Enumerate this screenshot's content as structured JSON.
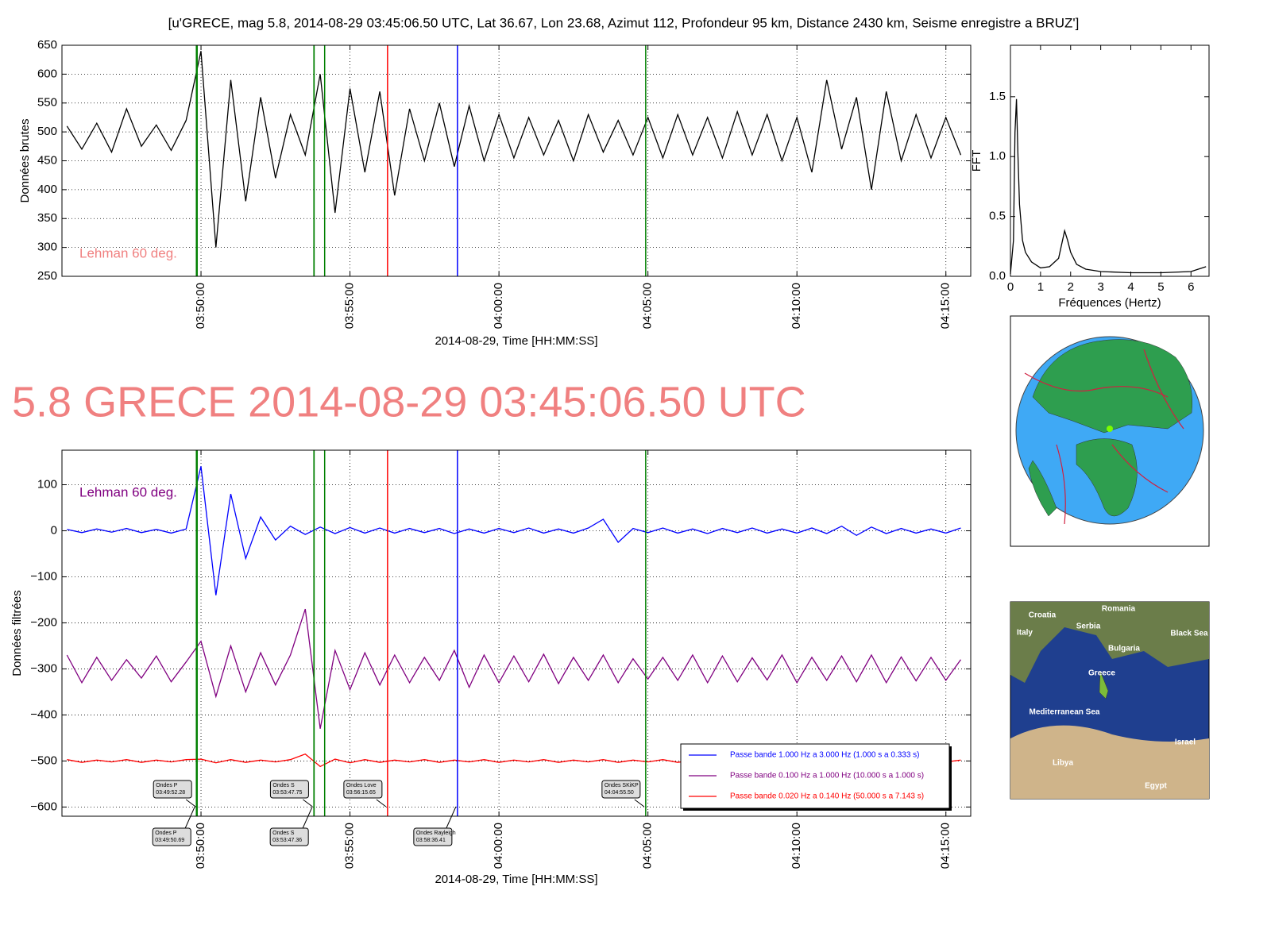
{
  "title": "[u'GRECE, mag 5.8, 2014-08-29 03:45:06.50 UTC, Lat 36.67, Lon 23.68, Azimut 112, Profondeur 95 km, Distance  2430 km, Seisme enregistre a BRUZ']",
  "headline": "5.8 GRECE 2014-08-29 03:45:06.50 UTC",
  "chart_data": [
    {
      "type": "line",
      "ylabel": "Données brutes",
      "xlabel": "2014-08-29, Time [HH:MM:SS]",
      "annotation": {
        "text": "Lehman 60 deg.",
        "color": "#f08080"
      },
      "grid": true,
      "xlim": [
        13520,
        15350
      ],
      "xticks": [
        {
          "value": 13800,
          "label": "03:50:00"
        },
        {
          "value": 14100,
          "label": "03:55:00"
        },
        {
          "value": 14400,
          "label": "04:00:00"
        },
        {
          "value": 14700,
          "label": "04:05:00"
        },
        {
          "value": 15000,
          "label": "04:10:00"
        },
        {
          "value": 15300,
          "label": "04:15:00"
        }
      ],
      "ylim": [
        250,
        650
      ],
      "yticks": [
        250,
        300,
        350,
        400,
        450,
        500,
        550,
        600,
        650
      ],
      "x": [
        13530,
        13560,
        13590,
        13620,
        13650,
        13680,
        13710,
        13740,
        13770,
        13800,
        13830,
        13860,
        13890,
        13920,
        13950,
        13980,
        14010,
        14040,
        14070,
        14100,
        14130,
        14160,
        14190,
        14220,
        14250,
        14280,
        14310,
        14340,
        14370,
        14400,
        14430,
        14460,
        14490,
        14520,
        14550,
        14580,
        14610,
        14640,
        14670,
        14700,
        14730,
        14760,
        14790,
        14820,
        14850,
        14880,
        14910,
        14940,
        14970,
        15000,
        15030,
        15060,
        15090,
        15120,
        15150,
        15180,
        15210,
        15240,
        15270,
        15300,
        15330
      ],
      "series": [
        {
          "color": "#000000",
          "values": [
            510,
            470,
            515,
            465,
            540,
            475,
            512,
            468,
            520,
            640,
            300,
            590,
            380,
            560,
            420,
            530,
            460,
            600,
            360,
            575,
            430,
            570,
            390,
            540,
            450,
            550,
            440,
            545,
            450,
            530,
            455,
            525,
            460,
            520,
            450,
            530,
            465,
            520,
            460,
            525,
            455,
            530,
            460,
            525,
            455,
            535,
            460,
            530,
            450,
            525,
            430,
            590,
            470,
            560,
            400,
            570,
            450,
            530,
            455,
            525,
            460
          ]
        }
      ],
      "markers": [
        {
          "x": 13790.69,
          "color": "#008000"
        },
        {
          "x": 13792.28,
          "color": "#008000"
        },
        {
          "x": 14027.36,
          "color": "#008000"
        },
        {
          "x": 14027.75,
          "color": "#008000"
        },
        {
          "x": 14049,
          "color": "#008000"
        },
        {
          "x": 14175.65,
          "color": "#ff0000"
        },
        {
          "x": 14316.41,
          "color": "#0000ff"
        },
        {
          "x": 14695.5,
          "color": "#008000"
        }
      ]
    },
    {
      "type": "line",
      "ylabel": "Données filtrées",
      "xlabel": "2014-08-29, Time [HH:MM:SS]",
      "annotation": {
        "text": "Lehman 60 deg.",
        "color": "#800080"
      },
      "grid": true,
      "legend": "lower right",
      "xlim": [
        13520,
        15350
      ],
      "xticks": [
        {
          "value": 13800,
          "label": "03:50:00"
        },
        {
          "value": 14100,
          "label": "03:55:00"
        },
        {
          "value": 14400,
          "label": "04:00:00"
        },
        {
          "value": 14700,
          "label": "04:05:00"
        },
        {
          "value": 15000,
          "label": "04:10:00"
        },
        {
          "value": 15300,
          "label": "04:15:00"
        }
      ],
      "ylim": [
        -620,
        175
      ],
      "yticks": [
        100,
        0,
        {
          "value": -100,
          "label": "−100"
        },
        {
          "value": -200,
          "label": "−200"
        },
        {
          "value": -300,
          "label": "−300"
        },
        {
          "value": -400,
          "label": "−400"
        },
        {
          "value": -500,
          "label": "−500"
        },
        {
          "value": -600,
          "label": "−600"
        }
      ],
      "x": [
        13530,
        13560,
        13590,
        13620,
        13650,
        13680,
        13710,
        13740,
        13770,
        13800,
        13830,
        13860,
        13890,
        13920,
        13950,
        13980,
        14010,
        14040,
        14070,
        14100,
        14130,
        14160,
        14190,
        14220,
        14250,
        14280,
        14310,
        14340,
        14370,
        14400,
        14430,
        14460,
        14490,
        14520,
        14550,
        14580,
        14610,
        14640,
        14670,
        14700,
        14730,
        14760,
        14790,
        14820,
        14850,
        14880,
        14910,
        14940,
        14970,
        15000,
        15030,
        15060,
        15090,
        15120,
        15150,
        15180,
        15210,
        15240,
        15270,
        15300,
        15330
      ],
      "series": [
        {
          "name": "Passe bande 1.000 Hz a 3.000 Hz (1.000 s a 0.333 s)",
          "color": "#0000ff",
          "values": [
            3,
            -4,
            4,
            -3,
            5,
            -4,
            3,
            -5,
            4,
            140,
            -140,
            80,
            -60,
            30,
            -20,
            10,
            -8,
            8,
            -6,
            7,
            -5,
            6,
            -5,
            5,
            -4,
            5,
            -6,
            4,
            -5,
            5,
            -4,
            6,
            -5,
            4,
            -5,
            6,
            25,
            -25,
            5,
            -4,
            6,
            -5,
            4,
            -6,
            5,
            -4,
            6,
            -5,
            4,
            -5,
            6,
            -6,
            10,
            -10,
            8,
            -6,
            5,
            -5,
            4,
            -5,
            6
          ]
        },
        {
          "name": "Passe bande 0.100 Hz a 1.000 Hz (10.000 s a 1.000 s)",
          "color": "#800080",
          "values": [
            -270,
            -330,
            -275,
            -325,
            -280,
            -320,
            -272,
            -328,
            -285,
            -240,
            -360,
            -250,
            -350,
            -265,
            -335,
            -270,
            -170,
            -430,
            -260,
            -345,
            -265,
            -335,
            -270,
            -330,
            -275,
            -325,
            -260,
            -340,
            -270,
            -330,
            -272,
            -328,
            -268,
            -332,
            -275,
            -325,
            -270,
            -330,
            -278,
            -322,
            -275,
            -325,
            -270,
            -330,
            -272,
            -328,
            -276,
            -324,
            -270,
            -330,
            -275,
            -325,
            -272,
            -328,
            -270,
            -330,
            -274,
            -326,
            -275,
            -325,
            -280
          ]
        },
        {
          "name": "Passe bande 0.020 Hz a 0.140 Hz (50.000 s a 7.143 s)",
          "color": "#ff0000",
          "values": [
            -497,
            -503,
            -498,
            -502,
            -497,
            -503,
            -498,
            -502,
            -497,
            -496,
            -504,
            -497,
            -503,
            -498,
            -502,
            -497,
            -485,
            -512,
            -496,
            -504,
            -497,
            -503,
            -498,
            -502,
            -497,
            -503,
            -498,
            -502,
            -497,
            -503,
            -498,
            -502,
            -497,
            -503,
            -498,
            -502,
            -497,
            -503,
            -498,
            -502,
            -497,
            -503,
            -498,
            -502,
            -497,
            -503,
            -498,
            -502,
            -497,
            -503,
            -498,
            -502,
            -497,
            -503,
            -498,
            -502,
            -497,
            -503,
            -498,
            -502,
            -498
          ]
        }
      ],
      "markers": [
        {
          "x": 13790.69,
          "color": "#008000",
          "phase": "Ondes P",
          "time": "03:49:50.69"
        },
        {
          "x": 13792.28,
          "color": "#008000",
          "phase": "Ondes P",
          "time": "03:49:52.28"
        },
        {
          "x": 14027.36,
          "color": "#008000",
          "phase": "Ondes S",
          "time": "03:53:47.36"
        },
        {
          "x": 14027.75,
          "color": "#008000",
          "phase": "Ondes S",
          "time": "03:53:47.75"
        },
        {
          "x": 14049,
          "color": "#008000"
        },
        {
          "x": 14175.65,
          "color": "#ff0000",
          "phase": "Ondes Love",
          "time": "03:56:15.65"
        },
        {
          "x": 14316.41,
          "color": "#0000ff",
          "phase": "Ondes Rayleigh",
          "time": "03:58:36.41"
        },
        {
          "x": 14695.5,
          "color": "#008000",
          "phase": "Ondes SKiKP",
          "time": "04:04:55.50"
        }
      ]
    },
    {
      "type": "line",
      "xlabel": "Fréquences (Hertz)",
      "ylabel": "FFT",
      "xlim": [
        0,
        6.6
      ],
      "xticks": [
        0,
        1,
        2,
        3,
        4,
        5,
        6
      ],
      "ylim": [
        0,
        1.93
      ],
      "yticks": [
        {
          "value": 0,
          "label": "0.0"
        },
        0.5,
        {
          "value": 1,
          "label": "1.0"
        },
        1.5
      ],
      "x": [
        0,
        0.1,
        0.15,
        0.2,
        0.25,
        0.3,
        0.4,
        0.5,
        0.7,
        1.0,
        1.3,
        1.6,
        1.8,
        1.9,
        2.0,
        2.2,
        2.5,
        3,
        4,
        5,
        6,
        6.5
      ],
      "series": [
        {
          "color": "#000000",
          "values": [
            0.02,
            0.3,
            1.2,
            1.48,
            1.0,
            0.6,
            0.3,
            0.2,
            0.12,
            0.07,
            0.08,
            0.15,
            0.38,
            0.3,
            0.2,
            0.1,
            0.06,
            0.04,
            0.03,
            0.03,
            0.04,
            0.08
          ]
        }
      ]
    }
  ],
  "map": {
    "labels": [
      "Romania",
      "Croatia",
      "Serbia",
      "Italy",
      "Bulgaria",
      "Black Sea",
      "Greece",
      "Mediterranean Sea",
      "Libya",
      "Egypt",
      "Israel"
    ]
  }
}
